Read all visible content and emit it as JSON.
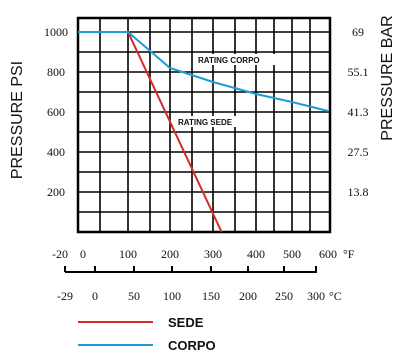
{
  "chart_data": {
    "type": "line",
    "left_axis_label": "PRESSURE PSI",
    "right_axis_label": "PRESSURE BAR",
    "y_ticks_left": [
      "1000",
      "800",
      "600",
      "400",
      "200"
    ],
    "y_ticks_right": [
      "69",
      "55.1",
      "41.3",
      "27.5",
      "13.8"
    ],
    "x_ticks_f": [
      "-20",
      "0",
      "100",
      "200",
      "300",
      "400",
      "500",
      "600"
    ],
    "x_unit_f": "°F",
    "x_ticks_c": [
      "-29",
      "0",
      "50",
      "100",
      "150",
      "200",
      "250",
      "300"
    ],
    "x_unit_c": "°C",
    "xlim_f": [
      -20,
      600
    ],
    "ylim_psi": [
      0,
      1050
    ],
    "grid": true,
    "series": [
      {
        "name": "SEDE",
        "label": "RATING SEDE",
        "color": "#d42a2a",
        "x": [
          -20,
          100,
          320
        ],
        "y": [
          1000,
          1000,
          0
        ]
      },
      {
        "name": "CORPO",
        "label": "RATING CORPO",
        "color": "#1e9bd7",
        "x": [
          -20,
          100,
          200,
          300,
          400,
          500,
          600
        ],
        "y": [
          1000,
          1000,
          820,
          750,
          690,
          650,
          605
        ]
      }
    ],
    "legend_position": "bottom"
  }
}
